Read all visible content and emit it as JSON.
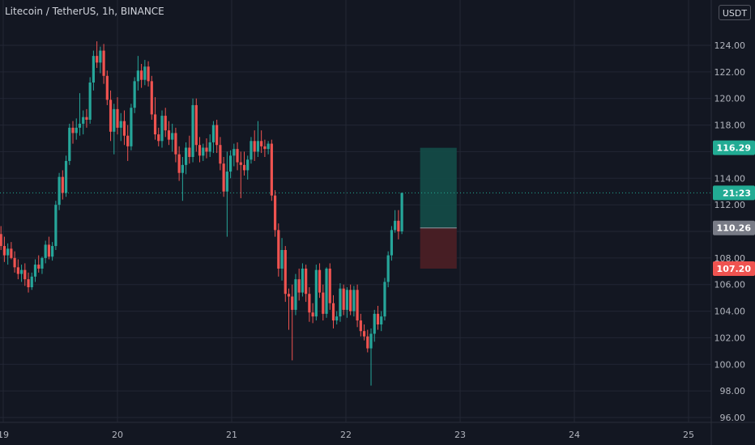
{
  "title": "Litecoin / TetherUS, 1h, BINANCE",
  "unit": "USDT",
  "colors": {
    "background": "#131722",
    "grid": "#232734",
    "up": "#26a69a",
    "down": "#ef5350",
    "current": "#22ab94",
    "entry": "#787b86",
    "target_zone": "#134a47",
    "stop_zone": "#4a1f25"
  },
  "chart_data": {
    "type": "candlestick",
    "y_ticks": [
      "96.00",
      "98.00",
      "100.00",
      "102.00",
      "104.00",
      "106.00",
      "108.00",
      "110.00",
      "112.00",
      "114.00",
      "116.00",
      "118.00",
      "120.00",
      "122.00",
      "124.00"
    ],
    "x_ticks": [
      "19",
      "20",
      "21",
      "22",
      "23",
      "24",
      "25"
    ],
    "ylim": [
      95.5,
      126.5
    ],
    "price_labels": {
      "target": "116.29",
      "current_time": "21:23",
      "entry": "110.26",
      "stop": "107.20"
    },
    "position": {
      "target": 116.29,
      "entry": 110.26,
      "stop": 107.2,
      "start_day": 22.65,
      "end_day": 22.97
    },
    "current_price": 112.9,
    "candles": [
      [
        18.95,
        109.0,
        110.2,
        108.3,
        109.8
      ],
      [
        18.98,
        109.8,
        110.4,
        108.6,
        108.9
      ],
      [
        19.01,
        108.9,
        109.6,
        107.7,
        108.2
      ],
      [
        19.04,
        108.2,
        109.1,
        107.5,
        108.7
      ],
      [
        19.07,
        108.7,
        109.2,
        107.9,
        108.0
      ],
      [
        19.1,
        108.0,
        108.5,
        106.9,
        107.3
      ],
      [
        19.13,
        107.3,
        107.9,
        106.4,
        106.8
      ],
      [
        19.16,
        106.8,
        107.5,
        106.2,
        107.1
      ],
      [
        19.19,
        107.1,
        107.6,
        105.9,
        106.4
      ],
      [
        19.22,
        106.4,
        106.9,
        105.4,
        105.8
      ],
      [
        19.25,
        105.8,
        106.9,
        105.6,
        106.6
      ],
      [
        19.28,
        106.6,
        107.9,
        106.2,
        107.5
      ],
      [
        19.31,
        107.5,
        108.2,
        106.9,
        107.2
      ],
      [
        19.34,
        107.2,
        108.1,
        106.8,
        108.0
      ],
      [
        19.37,
        108.0,
        109.3,
        107.6,
        109.0
      ],
      [
        19.4,
        109.0,
        109.6,
        107.9,
        108.1
      ],
      [
        19.43,
        108.1,
        109.2,
        107.8,
        108.9
      ],
      [
        19.46,
        108.9,
        112.3,
        108.6,
        112.0
      ],
      [
        19.49,
        112.0,
        114.4,
        111.6,
        114.1
      ],
      [
        19.52,
        114.1,
        114.6,
        112.4,
        112.9
      ],
      [
        19.55,
        112.9,
        115.7,
        112.6,
        115.3
      ],
      [
        19.58,
        115.3,
        118.1,
        115.0,
        117.8
      ],
      [
        19.61,
        117.8,
        118.3,
        116.6,
        117.4
      ],
      [
        19.64,
        117.4,
        118.5,
        116.9,
        117.8
      ],
      [
        19.67,
        117.8,
        120.4,
        117.2,
        118.1
      ],
      [
        19.7,
        118.1,
        119.1,
        117.3,
        118.6
      ],
      [
        19.73,
        118.6,
        119.2,
        117.8,
        118.4
      ],
      [
        19.76,
        118.4,
        121.6,
        118.1,
        121.2
      ],
      [
        19.79,
        121.2,
        123.6,
        120.6,
        123.2
      ],
      [
        19.82,
        123.2,
        124.3,
        122.3,
        122.7
      ],
      [
        19.85,
        122.7,
        123.9,
        121.9,
        123.6
      ],
      [
        19.88,
        123.6,
        124.1,
        121.1,
        121.7
      ],
      [
        19.91,
        121.7,
        122.1,
        119.5,
        119.9
      ],
      [
        19.94,
        119.9,
        120.6,
        116.8,
        117.5
      ],
      [
        19.97,
        117.5,
        119.6,
        115.8,
        119.2
      ],
      [
        20.0,
        119.2,
        120.1,
        117.3,
        117.8
      ],
      [
        20.03,
        117.8,
        118.9,
        116.8,
        118.3
      ],
      [
        20.06,
        118.3,
        119.1,
        116.5,
        117.2
      ],
      [
        20.09,
        117.2,
        118.0,
        115.3,
        116.4
      ],
      [
        20.12,
        116.4,
        119.6,
        116.1,
        119.3
      ],
      [
        20.15,
        119.3,
        121.6,
        118.9,
        121.3
      ],
      [
        20.18,
        121.3,
        123.2,
        120.6,
        122.1
      ],
      [
        20.21,
        122.1,
        122.6,
        120.8,
        121.4
      ],
      [
        20.24,
        121.4,
        122.9,
        121.0,
        122.4
      ],
      [
        20.27,
        122.4,
        122.8,
        120.9,
        121.3
      ],
      [
        20.3,
        121.3,
        121.7,
        118.4,
        118.8
      ],
      [
        20.33,
        118.8,
        120.1,
        116.9,
        117.3
      ],
      [
        20.36,
        117.3,
        117.8,
        116.4,
        116.8
      ],
      [
        20.39,
        116.8,
        119.1,
        116.3,
        118.7
      ],
      [
        20.42,
        118.7,
        119.3,
        117.1,
        117.6
      ],
      [
        20.45,
        117.6,
        118.3,
        116.5,
        116.9
      ],
      [
        20.48,
        116.9,
        118.1,
        116.0,
        117.4
      ],
      [
        20.51,
        117.4,
        117.8,
        115.2,
        115.8
      ],
      [
        20.54,
        115.8,
        116.4,
        113.8,
        114.4
      ],
      [
        20.57,
        114.4,
        115.6,
        112.3,
        115.0
      ],
      [
        20.6,
        115.0,
        116.7,
        114.3,
        116.3
      ],
      [
        20.63,
        116.3,
        117.2,
        115.1,
        115.6
      ],
      [
        20.66,
        115.6,
        120.0,
        115.2,
        119.5
      ],
      [
        20.69,
        119.5,
        120.0,
        116.0,
        116.5
      ],
      [
        20.72,
        116.5,
        117.1,
        115.2,
        115.7
      ],
      [
        20.75,
        115.7,
        116.6,
        115.3,
        116.3
      ],
      [
        20.78,
        116.3,
        117.0,
        115.5,
        116.0
      ],
      [
        20.81,
        116.0,
        117.3,
        115.6,
        116.7
      ],
      [
        20.84,
        116.7,
        118.3,
        115.9,
        118.0
      ],
      [
        20.87,
        118.0,
        118.4,
        115.9,
        116.5
      ],
      [
        20.9,
        116.5,
        117.1,
        114.6,
        115.1
      ],
      [
        20.93,
        115.1,
        115.6,
        112.6,
        113.0
      ],
      [
        20.96,
        113.0,
        116.0,
        109.6,
        114.5
      ],
      [
        20.99,
        114.5,
        116.1,
        114.0,
        115.7
      ],
      [
        21.02,
        115.7,
        116.6,
        114.9,
        116.2
      ],
      [
        21.05,
        116.2,
        116.7,
        114.6,
        115.2
      ],
      [
        21.08,
        115.2,
        116.0,
        112.5,
        115.0
      ],
      [
        21.11,
        115.0,
        116.0,
        114.2,
        114.6
      ],
      [
        21.14,
        114.6,
        115.7,
        113.9,
        115.4
      ],
      [
        21.17,
        115.4,
        117.1,
        115.1,
        116.8
      ],
      [
        21.2,
        116.8,
        117.6,
        115.3,
        116.0
      ],
      [
        21.23,
        116.0,
        118.3,
        115.6,
        116.8
      ],
      [
        21.26,
        116.8,
        117.6,
        115.9,
        116.4
      ],
      [
        21.29,
        116.4,
        116.9,
        115.6,
        116.2
      ],
      [
        21.32,
        116.2,
        116.8,
        115.8,
        116.6
      ],
      [
        21.35,
        116.6,
        116.9,
        112.3,
        112.7
      ],
      [
        21.38,
        112.7,
        113.1,
        109.6,
        110.1
      ],
      [
        21.41,
        110.1,
        110.6,
        106.6,
        107.2
      ],
      [
        21.44,
        107.2,
        109.5,
        106.3,
        108.6
      ],
      [
        21.47,
        108.6,
        108.9,
        104.7,
        105.3
      ],
      [
        21.5,
        105.3,
        105.7,
        102.6,
        105.1
      ],
      [
        21.53,
        105.1,
        106.0,
        100.3,
        104.1
      ],
      [
        21.56,
        104.1,
        106.8,
        103.7,
        106.4
      ],
      [
        21.59,
        106.4,
        107.2,
        104.8,
        105.4
      ],
      [
        21.62,
        105.4,
        107.6,
        105.1,
        107.2
      ],
      [
        21.65,
        107.2,
        107.5,
        104.7,
        105.3
      ],
      [
        21.68,
        105.3,
        105.8,
        103.2,
        103.9
      ],
      [
        21.71,
        103.9,
        104.6,
        103.1,
        103.6
      ],
      [
        21.74,
        103.6,
        107.5,
        103.3,
        107.1
      ],
      [
        21.77,
        107.1,
        107.6,
        105.0,
        105.4
      ],
      [
        21.8,
        105.4,
        106.0,
        103.3,
        103.8
      ],
      [
        21.83,
        103.8,
        107.3,
        103.5,
        107.2
      ],
      [
        21.86,
        107.2,
        107.6,
        104.1,
        104.6
      ],
      [
        21.89,
        104.6,
        105.2,
        102.7,
        103.3
      ],
      [
        21.92,
        103.3,
        104.0,
        103.0,
        103.6
      ],
      [
        21.95,
        103.6,
        106.1,
        103.2,
        105.7
      ],
      [
        21.98,
        105.7,
        106.0,
        103.7,
        104.1
      ],
      [
        22.01,
        104.1,
        105.8,
        103.5,
        105.6
      ],
      [
        22.04,
        105.6,
        106.0,
        103.7,
        104.0
      ],
      [
        22.07,
        104.0,
        105.9,
        103.6,
        105.6
      ],
      [
        22.1,
        105.6,
        106.0,
        102.8,
        103.3
      ],
      [
        22.13,
        103.3,
        103.8,
        102.1,
        102.5
      ],
      [
        22.16,
        102.5,
        103.0,
        101.8,
        102.1
      ],
      [
        22.19,
        102.1,
        102.6,
        100.9,
        101.2
      ],
      [
        22.22,
        101.2,
        102.7,
        98.4,
        102.3
      ],
      [
        22.25,
        102.3,
        104.1,
        101.7,
        103.8
      ],
      [
        22.28,
        103.8,
        104.4,
        102.6,
        103.0
      ],
      [
        22.31,
        103.0,
        104.0,
        102.5,
        103.6
      ],
      [
        22.34,
        103.6,
        106.5,
        103.3,
        106.2
      ],
      [
        22.37,
        106.2,
        108.5,
        105.8,
        108.2
      ],
      [
        22.4,
        108.2,
        110.4,
        107.8,
        110.1
      ],
      [
        22.43,
        110.1,
        111.6,
        109.9,
        110.8
      ],
      [
        22.46,
        110.8,
        111.6,
        109.4,
        110.0
      ],
      [
        22.49,
        110.0,
        112.9,
        109.8,
        112.9
      ]
    ]
  }
}
